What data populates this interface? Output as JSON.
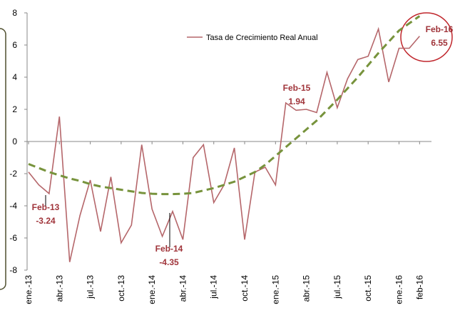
{
  "chart_data": {
    "type": "line",
    "categories": [
      "ene.-13",
      null,
      null,
      "abr.-13",
      null,
      null,
      "jul.-13",
      null,
      null,
      "oct.-13",
      null,
      null,
      "ene.-14",
      null,
      null,
      "abr.-14",
      null,
      null,
      "jul.-14",
      null,
      null,
      "oct.-14",
      null,
      null,
      "ene.-15",
      null,
      null,
      "abr.-15",
      null,
      null,
      "jul.-15",
      null,
      null,
      "oct.-15",
      null,
      null,
      "ene.-16",
      null,
      "feb-16"
    ],
    "series": [
      {
        "name": "Tasa de Crecimiento Real Anual",
        "color": "#b5666a",
        "values": [
          -1.9,
          -2.7,
          -3.24,
          1.55,
          -7.5,
          -4.6,
          -2.4,
          -5.6,
          -2.2,
          -6.3,
          -5.2,
          -0.2,
          -4.2,
          -5.9,
          -4.35,
          -6.1,
          -1.0,
          -0.2,
          -3.8,
          -2.7,
          -0.4,
          -6.1,
          -1.9,
          -1.6,
          -2.7,
          2.4,
          1.94,
          2.0,
          1.8,
          4.3,
          2.1,
          3.9,
          5.1,
          5.3,
          7.0,
          3.7,
          5.8,
          5.8,
          6.55
        ]
      },
      {
        "color": "#77933c",
        "dashed": true,
        "values": [
          -1.4,
          -1.65,
          -1.9,
          -2.1,
          -2.3,
          -2.45,
          -2.65,
          -2.8,
          -2.9,
          -3.0,
          -3.1,
          -3.2,
          -3.25,
          -3.27,
          -3.27,
          -3.25,
          -3.2,
          -3.05,
          -2.9,
          -2.7,
          -2.5,
          -2.2,
          -1.9,
          -1.45,
          -0.9,
          -0.35,
          0.2,
          0.75,
          1.3,
          1.95,
          2.6,
          3.3,
          4.0,
          4.75,
          5.5,
          6.2,
          6.9,
          7.35,
          7.8
        ]
      }
    ],
    "ylim": [
      -8,
      8
    ],
    "yticks": [
      -8,
      -6,
      -4,
      -2,
      0,
      2,
      4,
      6,
      8
    ],
    "annotations": [
      {
        "label": "Feb-13",
        "value": -3.24
      },
      {
        "label": "Feb-14",
        "value": -4.35
      },
      {
        "label": "Feb-15",
        "value": 1.94
      },
      {
        "label": "Feb-16",
        "value": 6.55
      }
    ]
  }
}
